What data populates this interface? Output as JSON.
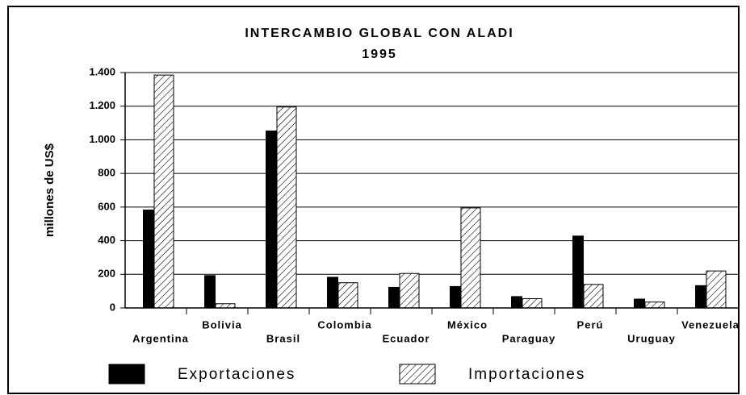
{
  "chart_data": {
    "type": "bar",
    "title": "INTERCAMBIO GLOBAL CON ALADI",
    "subtitle": "1995",
    "y_label": "millones de US$",
    "categories": [
      "Argentina",
      "Bolivia",
      "Brasil",
      "Colombia",
      "Ecuador",
      "México",
      "Paraguay",
      "Perú",
      "Uruguay",
      "Venezuela"
    ],
    "series": [
      {
        "name": "Exportaciones",
        "color": "#000000",
        "values": [
          585,
          195,
          1055,
          185,
          125,
          130,
          70,
          430,
          55,
          135
        ]
      },
      {
        "name": "Importaciones",
        "color": "#000000",
        "hatch": true,
        "values": [
          1385,
          25,
          1195,
          150,
          205,
          595,
          55,
          140,
          35,
          220
        ]
      }
    ],
    "ylim": [
      0,
      1400
    ],
    "yticks": [
      0,
      200,
      400,
      600,
      800,
      {
        "value": 1000,
        "label": "1.000"
      },
      {
        "value": 1200,
        "label": "1.200"
      },
      {
        "value": 1400,
        "label": "1.400"
      }
    ],
    "grid": true
  }
}
